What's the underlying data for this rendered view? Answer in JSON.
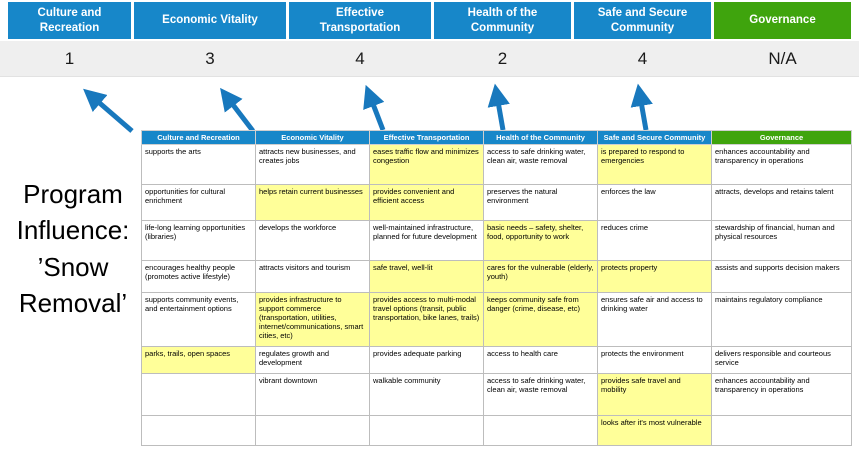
{
  "colors": {
    "header_blue": "#1787c9",
    "header_green": "#3fa40d",
    "highlight_yellow": "#ffff99",
    "arrow_blue": "#1878bd",
    "score_band_gray": "#efefef"
  },
  "columns": [
    {
      "label": "Culture and Recreation",
      "score": "1",
      "header_color": "#1787c9"
    },
    {
      "label": "Economic Vitality",
      "score": "3",
      "header_color": "#1787c9"
    },
    {
      "label": "Effective Transportation",
      "score": "4",
      "header_color": "#1787c9"
    },
    {
      "label": "Health of the Community",
      "score": "2",
      "header_color": "#1787c9"
    },
    {
      "label": "Safe and Secure Community",
      "score": "4",
      "header_color": "#1787c9"
    },
    {
      "label": "Governance",
      "score": "N/A",
      "header_color": "#3fa40d"
    }
  ],
  "program_label": "Program Influence: ’Snow Removal’",
  "table": {
    "rows": [
      [
        {
          "text": "supports the arts",
          "highlight": false
        },
        {
          "text": "attracts new businesses, and creates jobs",
          "highlight": false
        },
        {
          "text": "eases traffic flow and minimizes congestion",
          "highlight": true
        },
        {
          "text": "access to safe drinking water, clean air, waste removal",
          "highlight": false
        },
        {
          "text": "is prepared to respond to emergencies",
          "highlight": true
        },
        {
          "text": "enhances accountability and transparency in operations",
          "highlight": false
        }
      ],
      [
        {
          "text": "opportunities for cultural enrichment",
          "highlight": false
        },
        {
          "text": "helps retain current businesses",
          "highlight": true
        },
        {
          "text": "provides convenient and efficient access",
          "highlight": true
        },
        {
          "text": "preserves the natural environment",
          "highlight": false
        },
        {
          "text": "enforces the law",
          "highlight": false
        },
        {
          "text": "attracts, develops and retains talent",
          "highlight": false
        }
      ],
      [
        {
          "text": "life-long learning opportunities (libraries)",
          "highlight": false
        },
        {
          "text": "develops the workforce",
          "highlight": false
        },
        {
          "text": "well-maintained infrastructure, planned for future development",
          "highlight": false
        },
        {
          "text": "basic needs – safety, shelter, food, opportunity to work",
          "highlight": true
        },
        {
          "text": "reduces crime",
          "highlight": false
        },
        {
          "text": "stewardship of financial, human and physical resources",
          "highlight": false
        }
      ],
      [
        {
          "text": "encourages healthy people (promotes active lifestyle)",
          "highlight": false
        },
        {
          "text": "attracts visitors and tourism",
          "highlight": false
        },
        {
          "text": "safe travel, well-lit",
          "highlight": true
        },
        {
          "text": "cares for the vulnerable (elderly, youth)",
          "highlight": true
        },
        {
          "text": "protects property",
          "highlight": true
        },
        {
          "text": "assists and supports decision makers",
          "highlight": false
        }
      ],
      [
        {
          "text": "supports community events, and entertainment options",
          "highlight": false
        },
        {
          "text": "provides infrastructure to support commerce (transportation, utilities, internet/communications, smart cities, etc)",
          "highlight": true
        },
        {
          "text": "provides access to multi-modal travel options (transit, public transportation, bike lanes, trails)",
          "highlight": true
        },
        {
          "text": "keeps community safe from danger (crime, disease, etc)",
          "highlight": true
        },
        {
          "text": "ensures safe air and access to drinking water",
          "highlight": false
        },
        {
          "text": "maintains regulatory compliance",
          "highlight": false
        }
      ],
      [
        {
          "text": "parks, trails, open spaces",
          "highlight": true
        },
        {
          "text": "regulates growth and development",
          "highlight": false
        },
        {
          "text": "provides adequate parking",
          "highlight": false
        },
        {
          "text": "access to health care",
          "highlight": false
        },
        {
          "text": "protects the environment",
          "highlight": false
        },
        {
          "text": "delivers responsible and courteous service",
          "highlight": false
        }
      ],
      [
        {
          "text": "",
          "highlight": false
        },
        {
          "text": "vibrant downtown",
          "highlight": false
        },
        {
          "text": "walkable community",
          "highlight": false
        },
        {
          "text": "access to safe drinking water, clean air, waste removal",
          "highlight": false
        },
        {
          "text": "provides safe travel and mobility",
          "highlight": true
        },
        {
          "text": "enhances accountability and transparency in operations",
          "highlight": false
        }
      ],
      [
        {
          "text": "",
          "highlight": false
        },
        {
          "text": "",
          "highlight": false
        },
        {
          "text": "",
          "highlight": false
        },
        {
          "text": "",
          "highlight": false
        },
        {
          "text": "looks after it's most vulnerable",
          "highlight": true
        },
        {
          "text": "",
          "highlight": false
        }
      ]
    ]
  }
}
